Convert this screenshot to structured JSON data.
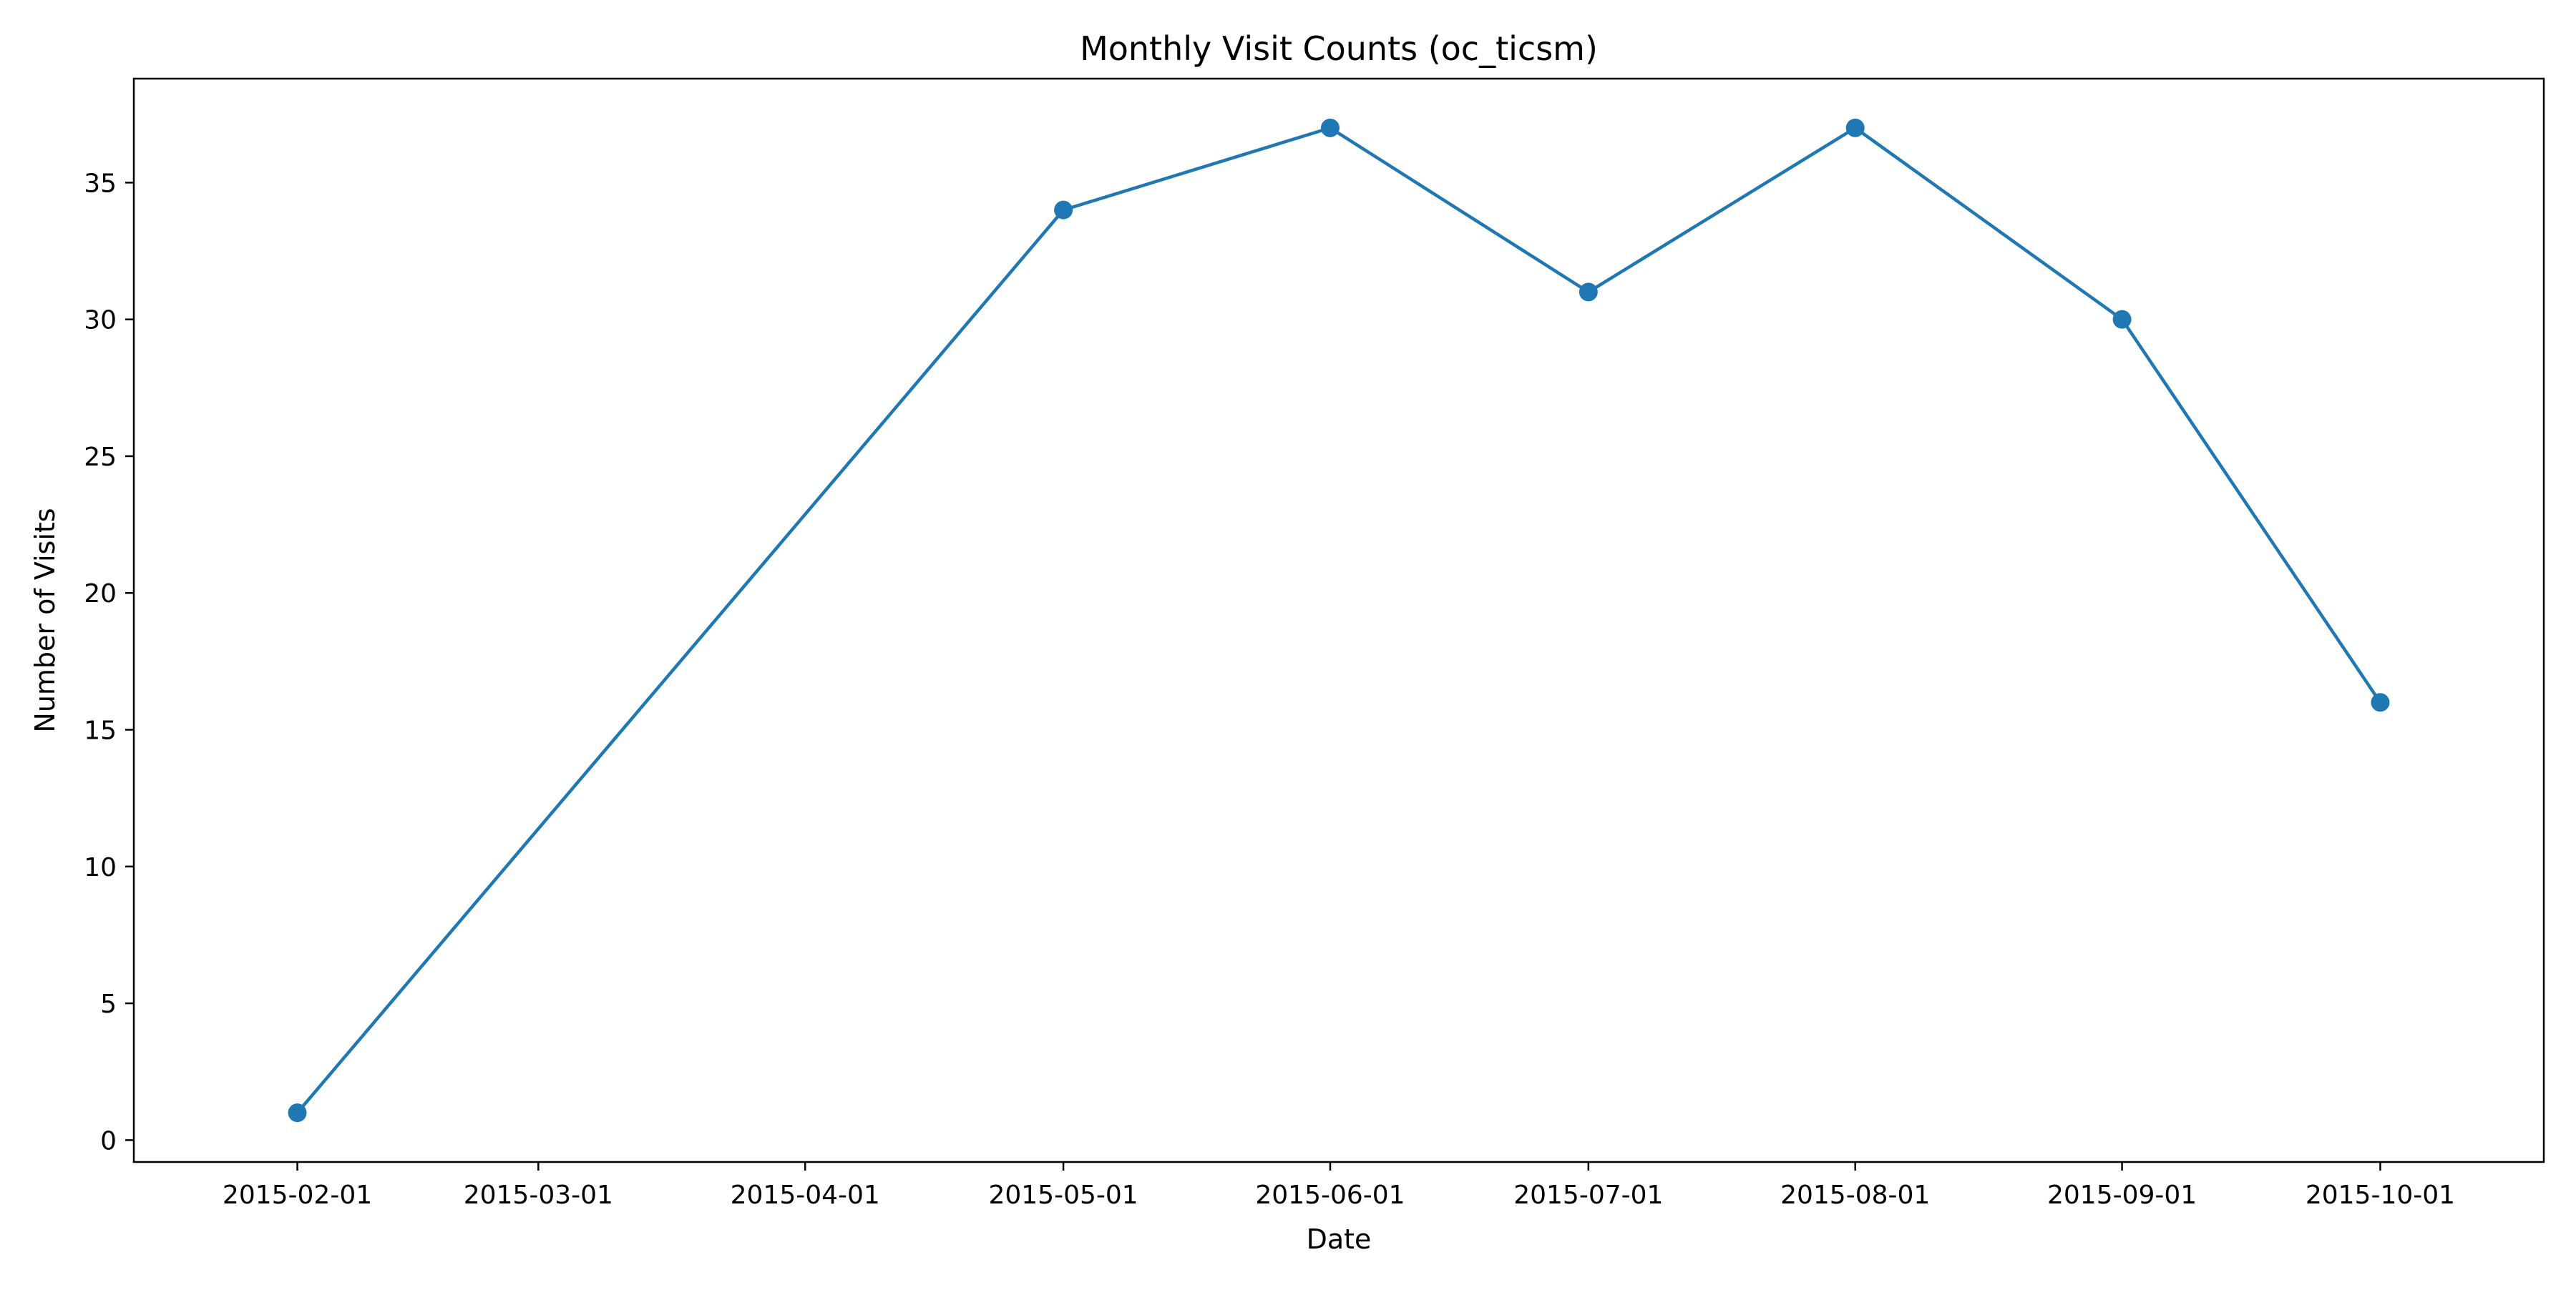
{
  "chart_data": {
    "type": "line",
    "title": "Monthly Visit Counts (oc_ticsm)",
    "xlabel": "Date",
    "ylabel": "Number of Visits",
    "x_tick_labels": [
      "2015-02-01",
      "2015-03-01",
      "2015-04-01",
      "2015-05-01",
      "2015-06-01",
      "2015-07-01",
      "2015-08-01",
      "2015-09-01",
      "2015-10-01"
    ],
    "y_tick_labels": [
      "0",
      "5",
      "10",
      "15",
      "20",
      "25",
      "30",
      "35"
    ],
    "y_ticks": [
      0,
      5,
      10,
      15,
      20,
      25,
      30,
      35
    ],
    "ylim": [
      -0.8,
      38.8
    ],
    "xlim": [
      "2015-01-13",
      "2015-10-20"
    ],
    "grid": false,
    "series": [
      {
        "color": "#1f77b4",
        "marker": "circle",
        "points": [
          {
            "x": "2015-02-01",
            "y": 1
          },
          {
            "x": "2015-05-01",
            "y": 34
          },
          {
            "x": "2015-06-01",
            "y": 37
          },
          {
            "x": "2015-07-01",
            "y": 31
          },
          {
            "x": "2015-08-01",
            "y": 37
          },
          {
            "x": "2015-09-01",
            "y": 30
          },
          {
            "x": "2015-10-01",
            "y": 16
          }
        ]
      }
    ]
  }
}
